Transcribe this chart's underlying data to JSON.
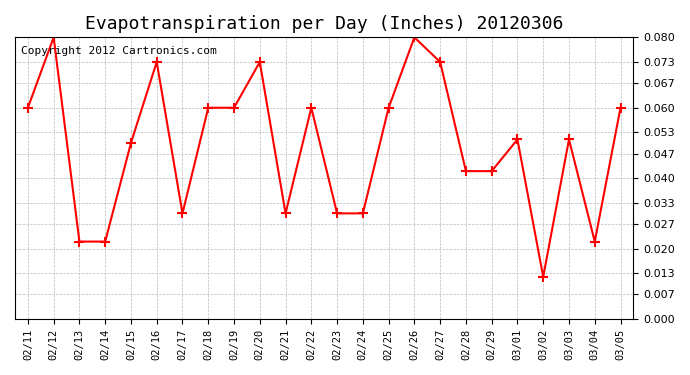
{
  "title": "Evapotranspiration per Day (Inches) 20120306",
  "copyright_text": "Copyright 2012 Cartronics.com",
  "dates": [
    "02/11",
    "02/12",
    "02/13",
    "02/14",
    "02/15",
    "02/16",
    "02/17",
    "02/18",
    "02/19",
    "02/20",
    "02/21",
    "02/22",
    "02/23",
    "02/24",
    "02/25",
    "02/26",
    "02/27",
    "02/28",
    "02/29",
    "03/01",
    "03/02",
    "03/03",
    "03/04",
    "03/05"
  ],
  "values": [
    0.06,
    0.08,
    0.022,
    0.022,
    0.05,
    0.073,
    0.03,
    0.06,
    0.06,
    0.073,
    0.03,
    0.06,
    0.03,
    0.03,
    0.06,
    0.08,
    0.073,
    0.042,
    0.042,
    0.051,
    0.012,
    0.051,
    0.022,
    0.06
  ],
  "ylim": [
    0.0,
    0.08
  ],
  "yticks": [
    0.0,
    0.007,
    0.013,
    0.02,
    0.027,
    0.033,
    0.04,
    0.047,
    0.053,
    0.06,
    0.067,
    0.073,
    0.08
  ],
  "line_color": "red",
  "marker": "+",
  "bg_color": "white",
  "grid_color": "#bbbbbb",
  "title_fontsize": 13,
  "copyright_fontsize": 8
}
